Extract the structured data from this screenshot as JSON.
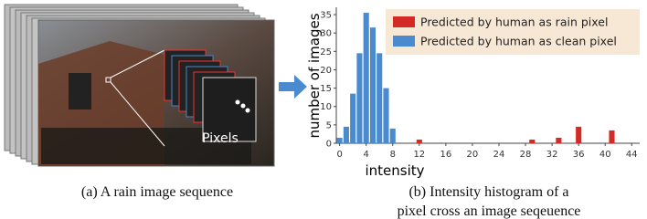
{
  "image_label": "Pixels",
  "captions": {
    "a": "(a) A rain image sequence",
    "b": [
      "(b) Intensity histogram of a",
      "pixel cross an image seqeuence"
    ]
  },
  "chart_data": {
    "type": "bar",
    "x": [
      0,
      1,
      2,
      3,
      4,
      5,
      6,
      7,
      8,
      12,
      29,
      33,
      36,
      41
    ],
    "series": [
      {
        "name": "Predicted by human as rain pixel",
        "color": "#d42a26",
        "values": [
          null,
          null,
          null,
          null,
          null,
          null,
          null,
          null,
          null,
          1,
          1,
          1.5,
          4.5,
          3.5
        ]
      },
      {
        "name": "Predicted by human as clean pixel",
        "color": "#4a8bd0",
        "values": [
          1.5,
          4.5,
          13.5,
          24.5,
          35.5,
          31.5,
          24.5,
          15,
          4,
          null,
          null,
          null,
          null,
          null
        ]
      }
    ],
    "xlabel": "intensity",
    "ylabel": "number of images",
    "xlim": [
      -0.5,
      45.2
    ],
    "ylim": [
      0,
      37
    ],
    "xticks": [
      0,
      4,
      8,
      12,
      16,
      20,
      24,
      28,
      32,
      36,
      40,
      44
    ],
    "yticks": [
      0,
      5,
      10,
      15,
      20,
      25,
      30,
      35
    ],
    "legend": "top-right",
    "grid": false
  }
}
